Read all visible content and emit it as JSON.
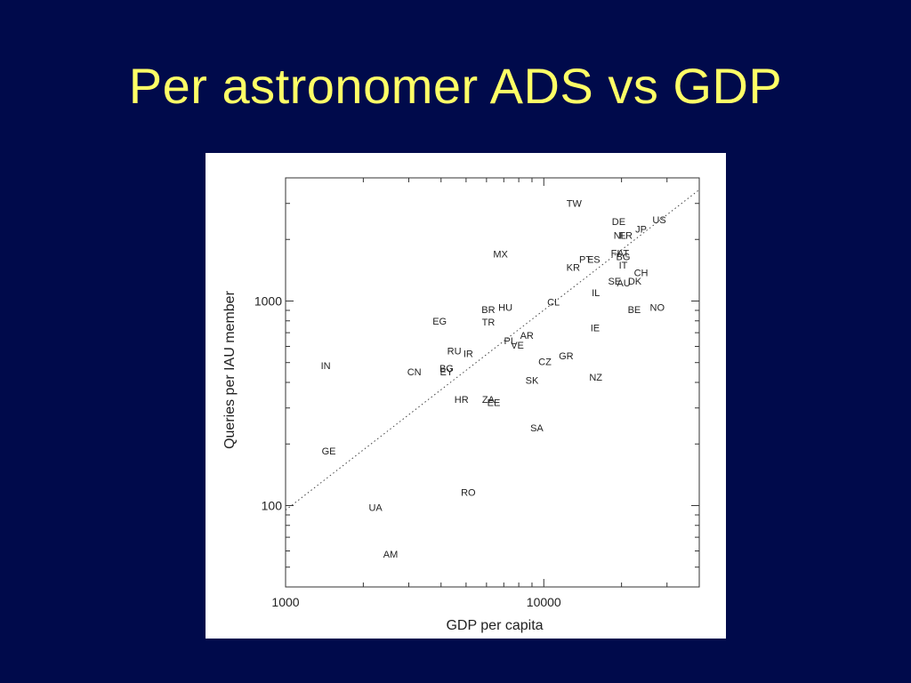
{
  "slide": {
    "title": "Per astronomer ADS vs GDP",
    "background": "#000a4b",
    "title_color": "#ffff66"
  },
  "chart_data": {
    "type": "scatter",
    "title": "",
    "xlabel": "GDP per capita",
    "ylabel": "Queries per IAU member",
    "xscale": "log",
    "yscale": "log",
    "xlim": [
      1000,
      40000
    ],
    "ylim": [
      40,
      4000
    ],
    "xticks": [
      {
        "value": 1000,
        "label": "1000"
      },
      {
        "value": 10000,
        "label": "10000"
      }
    ],
    "yticks": [
      {
        "value": 100,
        "label": "100"
      },
      {
        "value": 1000,
        "label": "1000"
      }
    ],
    "grid": false,
    "trendline": {
      "style": "dotted",
      "x": [
        1000,
        40000
      ],
      "y": [
        95,
        3500
      ]
    },
    "points": [
      {
        "label": "TW",
        "x": 13100,
        "y": 3000
      },
      {
        "label": "US",
        "x": 28000,
        "y": 2500
      },
      {
        "label": "DE",
        "x": 19500,
        "y": 2450
      },
      {
        "label": "JP",
        "x": 23800,
        "y": 2250
      },
      {
        "label": "NL",
        "x": 19700,
        "y": 2100
      },
      {
        "label": "FR",
        "x": 20800,
        "y": 2100
      },
      {
        "label": "MX",
        "x": 6800,
        "y": 1700
      },
      {
        "label": "FI",
        "x": 18900,
        "y": 1720
      },
      {
        "label": "AT",
        "x": 20300,
        "y": 1720
      },
      {
        "label": "BG",
        "x": 20300,
        "y": 1650
      },
      {
        "label": "PT",
        "x": 14500,
        "y": 1600
      },
      {
        "label": "ES",
        "x": 15600,
        "y": 1600
      },
      {
        "label": "IT",
        "x": 20300,
        "y": 1500
      },
      {
        "label": "KR",
        "x": 13000,
        "y": 1460
      },
      {
        "label": "CH",
        "x": 23800,
        "y": 1380
      },
      {
        "label": "SE",
        "x": 18800,
        "y": 1250
      },
      {
        "label": "AU",
        "x": 20400,
        "y": 1230
      },
      {
        "label": "DK",
        "x": 22500,
        "y": 1250
      },
      {
        "label": "IL",
        "x": 15900,
        "y": 1100
      },
      {
        "label": "CL",
        "x": 10900,
        "y": 990
      },
      {
        "label": "BR",
        "x": 6100,
        "y": 910
      },
      {
        "label": "HU",
        "x": 7100,
        "y": 930
      },
      {
        "label": "NO",
        "x": 27500,
        "y": 930
      },
      {
        "label": "BE",
        "x": 22400,
        "y": 910
      },
      {
        "label": "EG",
        "x": 3950,
        "y": 800
      },
      {
        "label": "TR",
        "x": 6100,
        "y": 790
      },
      {
        "label": "IE",
        "x": 15800,
        "y": 740
      },
      {
        "label": "AR",
        "x": 8600,
        "y": 680
      },
      {
        "label": "PL",
        "x": 7400,
        "y": 640
      },
      {
        "label": "VE",
        "x": 7900,
        "y": 610
      },
      {
        "label": "RU",
        "x": 4500,
        "y": 570
      },
      {
        "label": "IR",
        "x": 5100,
        "y": 555
      },
      {
        "label": "GR",
        "x": 12200,
        "y": 540
      },
      {
        "label": "CZ",
        "x": 10100,
        "y": 505
      },
      {
        "label": "IN",
        "x": 1430,
        "y": 485
      },
      {
        "label": "BG",
        "x": 4200,
        "y": 470
      },
      {
        "label": "CN",
        "x": 3150,
        "y": 450
      },
      {
        "label": "EY",
        "x": 4200,
        "y": 450
      },
      {
        "label": "NZ",
        "x": 15900,
        "y": 425
      },
      {
        "label": "SK",
        "x": 9000,
        "y": 410
      },
      {
        "label": "HR",
        "x": 4800,
        "y": 330
      },
      {
        "label": "ZA",
        "x": 6100,
        "y": 330
      },
      {
        "label": "EE",
        "x": 6400,
        "y": 320
      },
      {
        "label": "SA",
        "x": 9400,
        "y": 240
      },
      {
        "label": "GE",
        "x": 1470,
        "y": 185
      },
      {
        "label": "RO",
        "x": 5100,
        "y": 116
      },
      {
        "label": "UA",
        "x": 2230,
        "y": 98
      },
      {
        "label": "AM",
        "x": 2550,
        "y": 58
      }
    ]
  }
}
